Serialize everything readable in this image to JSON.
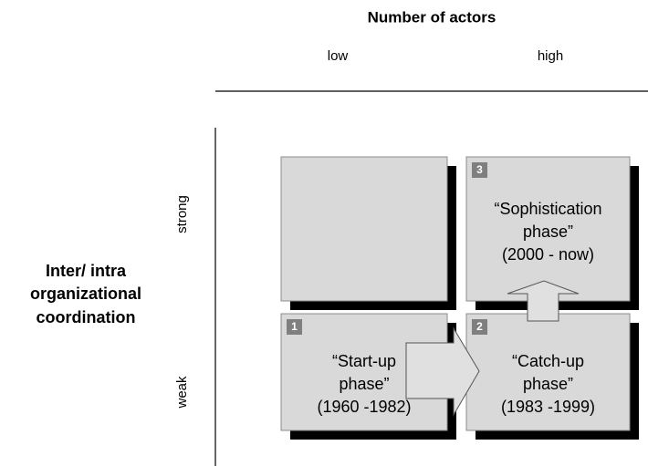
{
  "header": {
    "title": "Number of actors",
    "columns": [
      "low",
      "high"
    ]
  },
  "side": {
    "title_lines": [
      "Inter/ intra",
      "organizational",
      "coordination"
    ],
    "rows": [
      "strong",
      "weak"
    ]
  },
  "boxes": [
    {
      "number": "3",
      "lines": [
        "“Sophistication",
        "phase”",
        "(2000 - now)"
      ]
    },
    {
      "number": "1",
      "lines": [
        "“Start-up",
        "phase”",
        "(1960 -1982)"
      ]
    },
    {
      "number": "2",
      "lines": [
        "“Catch-up",
        "phase”",
        "(1983 -1999)"
      ]
    }
  ]
}
